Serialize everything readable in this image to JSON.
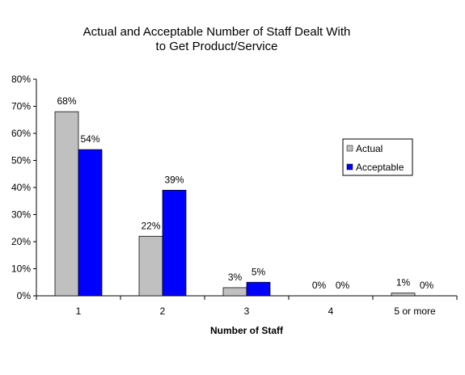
{
  "chart_data": {
    "type": "bar",
    "title_lines": [
      "Actual and Acceptable Number of Staff Dealt With",
      "to Get Product/Service"
    ],
    "xlabel": "Number of Staff",
    "ylabel": "",
    "categories": [
      "1",
      "2",
      "3",
      "4",
      "5 or more"
    ],
    "series": [
      {
        "name": "Actual",
        "values": [
          68,
          22,
          3,
          0,
          1
        ],
        "labels": [
          "68%",
          "22%",
          "3%",
          "0%",
          "1%"
        ],
        "color": "#c0c0c0"
      },
      {
        "name": "Acceptable",
        "values": [
          54,
          39,
          5,
          0,
          0
        ],
        "labels": [
          "54%",
          "39%",
          "5%",
          "0%",
          "0%"
        ],
        "color": "#0000ff"
      }
    ],
    "ylim": [
      0,
      80
    ],
    "yticks": [
      0,
      10,
      20,
      30,
      40,
      50,
      60,
      70,
      80
    ],
    "ytick_labels": [
      "0%",
      "10%",
      "20%",
      "30%",
      "40%",
      "50%",
      "60%",
      "70%",
      "80%"
    ],
    "grid": false,
    "legend_position": "right"
  }
}
